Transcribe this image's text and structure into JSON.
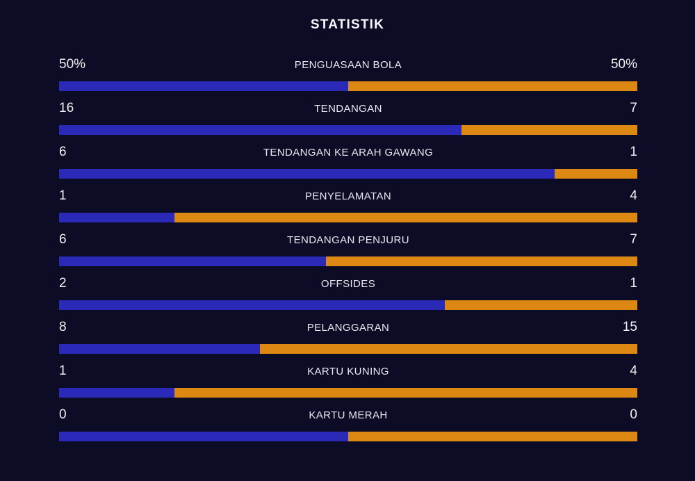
{
  "title": "STATISTIK",
  "colors": {
    "background": "#0d0c26",
    "home_bar": "#2a29b8",
    "away_bar": "#dd8813",
    "title_text": "#f8f8fa",
    "label_text": "#e9e8ef",
    "value_text": "#f3f1ee"
  },
  "chart_data": {
    "type": "bar",
    "title": "STATISTIK",
    "orientation": "horizontal-paired",
    "legend_position": "none",
    "grid": false,
    "bar_split_rule": "home_value / (home_value + away_value), 50% when both are 0",
    "rows": [
      {
        "label": "PENGUASAAN BOLA",
        "home": "50%",
        "away": "50%",
        "home_value": 50,
        "away_value": 50
      },
      {
        "label": "TENDANGAN",
        "home": "16",
        "away": "7",
        "home_value": 16,
        "away_value": 7
      },
      {
        "label": "TENDANGAN KE ARAH GAWANG",
        "home": "6",
        "away": "1",
        "home_value": 6,
        "away_value": 1
      },
      {
        "label": "PENYELAMATAN",
        "home": "1",
        "away": "4",
        "home_value": 1,
        "away_value": 4
      },
      {
        "label": "TENDANGAN PENJURU",
        "home": "6",
        "away": "7",
        "home_value": 6,
        "away_value": 7
      },
      {
        "label": "OFFSIDES",
        "home": "2",
        "away": "1",
        "home_value": 2,
        "away_value": 1
      },
      {
        "label": "PELANGGARAN",
        "home": "8",
        "away": "15",
        "home_value": 8,
        "away_value": 15
      },
      {
        "label": "KARTU KUNING",
        "home": "1",
        "away": "4",
        "home_value": 1,
        "away_value": 4
      },
      {
        "label": "KARTU MERAH",
        "home": "0",
        "away": "0",
        "home_value": 0,
        "away_value": 0
      }
    ]
  }
}
